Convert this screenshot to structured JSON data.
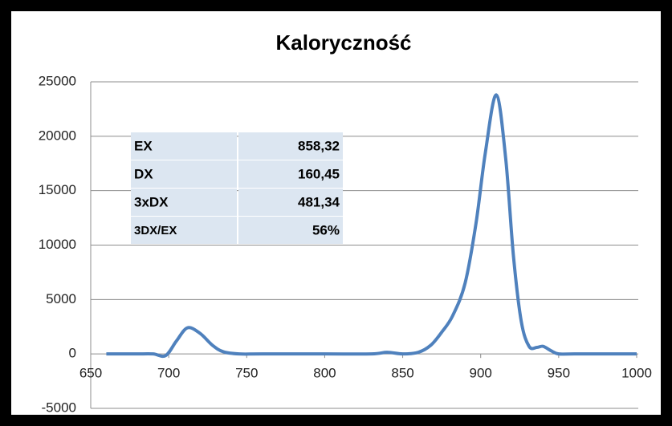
{
  "chart_data": {
    "type": "line",
    "title": "Kaloryczność",
    "x": [
      660,
      670,
      680,
      690,
      698,
      705,
      712,
      720,
      728,
      735,
      745,
      760,
      800,
      830,
      840,
      850,
      860,
      868,
      875,
      882,
      890,
      897,
      903,
      910,
      916,
      921,
      926,
      931,
      936,
      940,
      945,
      950,
      960,
      1000
    ],
    "series": [
      {
        "color": "#4f81bd",
        "values": [
          0,
          0,
          0,
          0,
          -150,
          1200,
          2400,
          1900,
          800,
          200,
          0,
          0,
          0,
          0,
          150,
          0,
          150,
          800,
          2000,
          3500,
          6500,
          12000,
          18500,
          23800,
          18000,
          9000,
          3000,
          700,
          600,
          700,
          300,
          0,
          0,
          0
        ]
      }
    ],
    "xlim": [
      650,
      1000
    ],
    "xticks": [
      650,
      700,
      750,
      800,
      850,
      900,
      950,
      1000
    ],
    "ylim": [
      -5000,
      25000
    ],
    "yticks": [
      -5000,
      0,
      5000,
      10000,
      15000,
      20000,
      25000
    ],
    "grid": true
  },
  "table": {
    "rows": [
      [
        "EX",
        "858,32"
      ],
      [
        "DX",
        "160,45"
      ],
      [
        "3xDX",
        "481,34"
      ],
      [
        "3DX/EX",
        "56%"
      ]
    ]
  }
}
